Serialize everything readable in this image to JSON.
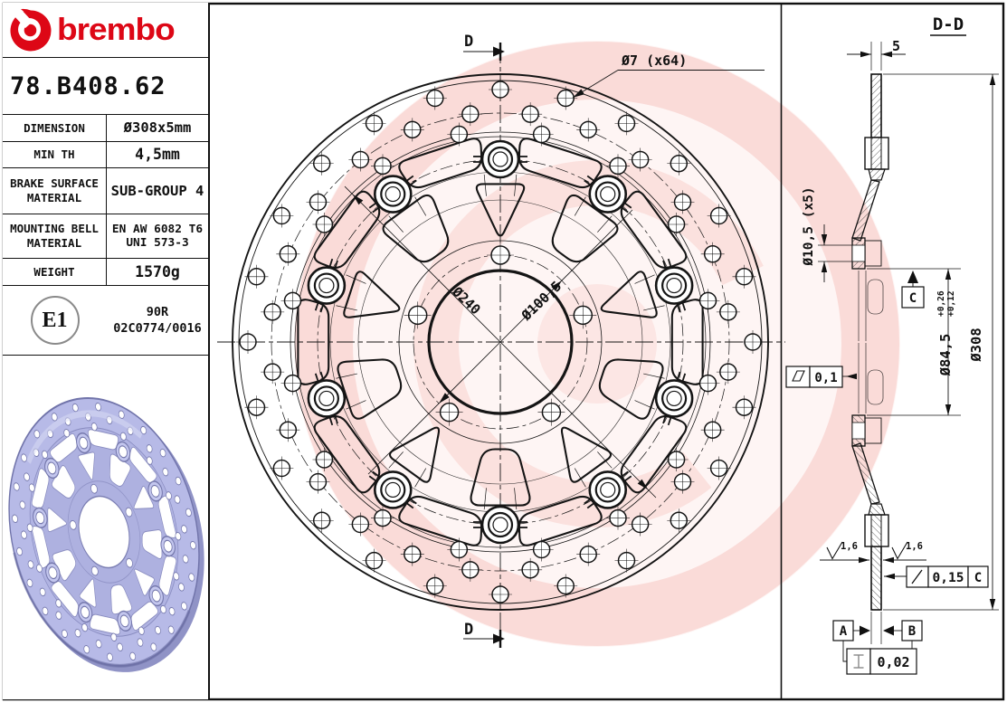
{
  "header": {
    "brand": "brembo",
    "part_number": "78.B408.62"
  },
  "spec_table": {
    "rows": [
      {
        "label": "DIMENSION",
        "value": "Ø308x5mm"
      },
      {
        "label": "MIN TH",
        "value": "4,5mm"
      },
      {
        "label": "BRAKE SURFACE MATERIAL",
        "value": "SUB-GROUP 4"
      },
      {
        "label": "MOUNTING BELL MATERIAL",
        "value": "EN AW 6082 T6",
        "value2": "UNI 573-3"
      },
      {
        "label": "WEIGHT",
        "value": "1570g"
      }
    ]
  },
  "homologation": {
    "mark": "E1",
    "code_line1": "90R",
    "code_line2": "02C0774/0016"
  },
  "main_view": {
    "section_marker_top": "D",
    "section_marker_bottom": "D",
    "holes_callout": "Ø7 (x64)",
    "bell_diameter": "Ø240",
    "bolt_circle_diameter": "Ø100,5"
  },
  "section_view": {
    "title": "D-D",
    "thickness": "5",
    "bolt_hole_callout": "Ø10,5 (x5)",
    "datum_c": "C",
    "flatness": "0,1",
    "bore_diameter": "Ø84,5",
    "bore_tol_upper": "+0,26",
    "bore_tol_lower": "+0,12",
    "outer_diameter": "Ø308",
    "roughness_left": "1,6",
    "roughness_right": "1,6",
    "runout": "0,15",
    "runout_datum": "C",
    "datum_a": "A",
    "datum_b": "B",
    "parallelism": "0,02"
  },
  "colors": {
    "brand_red": "#dd0716",
    "line": "#151515",
    "watermark_pink": "#e53e30",
    "photo_body": "#b7bae7",
    "photo_inner": "#b0b3e2",
    "photo_edge": "#7174aa",
    "photo_shadow": "#9093c6"
  }
}
